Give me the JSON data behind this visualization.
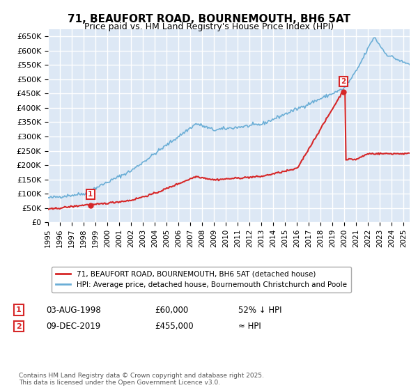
{
  "title": "71, BEAUFORT ROAD, BOURNEMOUTH, BH6 5AT",
  "subtitle": "Price paid vs. HM Land Registry's House Price Index (HPI)",
  "hpi_label": "HPI: Average price, detached house, Bournemouth Christchurch and Poole",
  "property_label": "71, BEAUFORT ROAD, BOURNEMOUTH, BH6 5AT (detached house)",
  "footnote": "Contains HM Land Registry data © Crown copyright and database right 2025.\nThis data is licensed under the Open Government Licence v3.0.",
  "sale1_date": "03-AUG-1998",
  "sale1_price": "£60,000",
  "sale1_note": "52% ↓ HPI",
  "sale2_date": "09-DEC-2019",
  "sale2_price": "£455,000",
  "sale2_note": "≈ HPI",
  "ylim": [
    0,
    675000
  ],
  "yticks": [
    0,
    50000,
    100000,
    150000,
    200000,
    250000,
    300000,
    350000,
    400000,
    450000,
    500000,
    550000,
    600000,
    650000
  ],
  "ytick_labels": [
    "£0",
    "£50K",
    "£100K",
    "£150K",
    "£200K",
    "£250K",
    "£300K",
    "£350K",
    "£400K",
    "£450K",
    "£500K",
    "£550K",
    "£600K",
    "£650K"
  ],
  "xlim_start": 1995.0,
  "xlim_end": 2025.5,
  "hpi_color": "#6baed6",
  "property_color": "#d62728",
  "background_color": "#dde8f5",
  "grid_color": "#ffffff",
  "sale_marker_color": "#d62728",
  "sale_box_color": "#d62728",
  "sale1_x": 1998.58,
  "sale1_y": 60000,
  "sale2_x": 2019.92,
  "sale2_y": 455000
}
